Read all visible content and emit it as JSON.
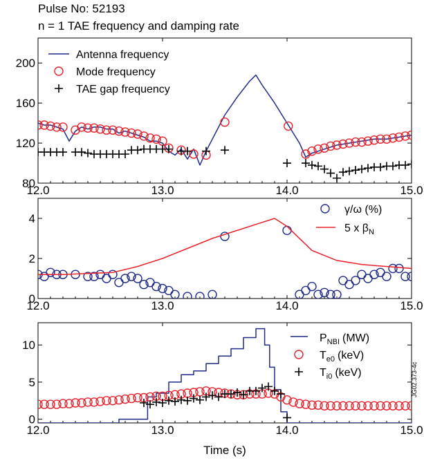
{
  "header": {
    "pulse": "Pulse No: 52193",
    "title": "n = 1 TAE frequency and damping rate"
  },
  "xlabel": "Time (s)",
  "watermark": "JG02.373-4c",
  "colors": {
    "blue": "#1f2a8a",
    "red": "#e8202a",
    "black": "#000000"
  },
  "chart_data": [
    {
      "type": "line",
      "title": "n = 1 TAE frequency and damping rate",
      "xlabel": "",
      "ylabel": "",
      "xlim": [
        12.0,
        15.0
      ],
      "ylim": [
        80,
        225
      ],
      "xticks": [
        "12.0",
        "13.0",
        "14.0",
        "15.0"
      ],
      "yticks": [
        "80",
        "120",
        "160",
        "200"
      ],
      "legend": "top-left",
      "series": [
        {
          "name": "Antenna frequency",
          "style": "line",
          "color": "#1f2a8a",
          "x": [
            12.0,
            12.05,
            12.1,
            12.15,
            12.2,
            12.25,
            12.3,
            12.35,
            12.4,
            12.45,
            12.5,
            12.55,
            12.6,
            12.65,
            12.7,
            12.75,
            12.8,
            12.85,
            12.9,
            12.95,
            13.0,
            13.05,
            13.1,
            13.15,
            13.2,
            13.25,
            13.3,
            13.35,
            13.4,
            13.5,
            13.6,
            13.7,
            13.75,
            13.8,
            13.9,
            14.0,
            14.1,
            14.15,
            14.2,
            14.3,
            14.4,
            14.5,
            14.6,
            14.7,
            14.8,
            14.9,
            15.0
          ],
          "y": [
            140,
            138,
            138,
            136,
            134,
            122,
            132,
            136,
            134,
            136,
            136,
            134,
            134,
            130,
            132,
            130,
            128,
            126,
            122,
            122,
            120,
            112,
            108,
            114,
            104,
            114,
            98,
            112,
            124,
            148,
            166,
            182,
            188,
            178,
            160,
            140,
            120,
            106,
            110,
            114,
            118,
            120,
            122,
            124,
            124,
            126,
            128
          ]
        },
        {
          "name": "Mode frequency",
          "style": "circles",
          "color": "#e8202a",
          "x": [
            12.0,
            12.05,
            12.1,
            12.15,
            12.2,
            12.3,
            12.35,
            12.4,
            12.45,
            12.5,
            12.55,
            12.6,
            12.65,
            12.7,
            12.75,
            12.8,
            12.85,
            12.9,
            12.95,
            13.0,
            13.05,
            13.15,
            13.25,
            13.35,
            13.5,
            14.01,
            14.15,
            14.2,
            14.25,
            14.3,
            14.35,
            14.4,
            14.45,
            14.5,
            14.55,
            14.6,
            14.65,
            14.7,
            14.75,
            14.8,
            14.85,
            14.9,
            14.95,
            15.0
          ],
          "y": [
            138,
            138,
            137,
            136,
            136,
            133,
            136,
            135,
            135,
            134,
            133,
            133,
            132,
            131,
            130,
            129,
            127,
            125,
            124,
            122,
            115,
            113,
            109,
            108,
            141,
            137,
            109,
            112,
            114,
            115,
            117,
            118,
            119,
            120,
            121,
            121,
            122,
            123,
            124,
            124,
            125,
            126,
            127,
            128
          ]
        },
        {
          "name": "TAE gap frequency",
          "style": "plus",
          "color": "#000000",
          "x": [
            12.0,
            12.05,
            12.1,
            12.15,
            12.2,
            12.3,
            12.35,
            12.4,
            12.45,
            12.5,
            12.55,
            12.6,
            12.65,
            12.7,
            12.75,
            12.8,
            12.85,
            12.9,
            12.95,
            13.0,
            13.05,
            13.15,
            13.2,
            13.35,
            13.5,
            14.0,
            14.15,
            14.2,
            14.25,
            14.3,
            14.35,
            14.4,
            14.45,
            14.5,
            14.55,
            14.6,
            14.65,
            14.7,
            14.75,
            14.8,
            14.85,
            14.9,
            14.95,
            15.0
          ],
          "y": [
            111,
            111,
            111,
            111,
            111,
            111,
            111,
            110,
            109,
            109,
            109,
            109,
            109,
            109,
            113,
            113,
            114,
            114,
            114,
            114,
            114,
            112,
            112,
            112,
            113,
            100,
            100,
            98,
            97,
            94,
            90,
            85,
            91,
            92,
            93,
            94,
            95,
            96,
            96,
            97,
            97,
            98,
            98,
            99
          ]
        }
      ]
    },
    {
      "type": "line",
      "title": "",
      "xlabel": "",
      "ylabel": "",
      "xlim": [
        12.0,
        15.0
      ],
      "ylim": [
        0,
        5
      ],
      "xticks": [
        "12.0",
        "13.0",
        "14.0",
        "15.0"
      ],
      "yticks": [
        "0",
        "2",
        "4"
      ],
      "legend": "top-right",
      "series": [
        {
          "name": "γ/ω (%)",
          "style": "circles",
          "color": "#1f2a8a",
          "x": [
            12.0,
            12.05,
            12.1,
            12.15,
            12.2,
            12.3,
            12.4,
            12.45,
            12.5,
            12.55,
            12.6,
            12.65,
            12.7,
            12.75,
            12.8,
            12.85,
            12.9,
            12.95,
            13.0,
            13.05,
            13.1,
            13.2,
            13.3,
            13.4,
            13.5,
            14.0,
            14.1,
            14.15,
            14.2,
            14.25,
            14.3,
            14.35,
            14.4,
            14.45,
            14.5,
            14.55,
            14.6,
            14.65,
            14.7,
            14.75,
            14.8,
            14.85,
            14.9,
            14.95,
            15.0
          ],
          "y": [
            1.2,
            1.1,
            1.3,
            1.2,
            1.2,
            1.2,
            1.1,
            1.1,
            1.2,
            1.0,
            1.2,
            0.8,
            1.0,
            1.1,
            1.0,
            0.7,
            0.8,
            0.6,
            0.5,
            0.4,
            0.2,
            0.1,
            0.1,
            0.2,
            3.1,
            3.4,
            0.2,
            0.4,
            0.6,
            0.2,
            0.3,
            0.2,
            0.2,
            0.9,
            0.7,
            0.9,
            1.2,
            1.0,
            1.2,
            1.3,
            1.1,
            1.5,
            1.5,
            1.1,
            1.1
          ]
        },
        {
          "name": "5 x β_N",
          "style": "line",
          "color": "#e8202a",
          "x": [
            12.0,
            12.2,
            12.4,
            12.6,
            12.8,
            13.0,
            13.2,
            13.4,
            13.6,
            13.8,
            13.9,
            14.0,
            14.2,
            14.4,
            14.6,
            14.8,
            15.0
          ],
          "y": [
            1.2,
            1.2,
            1.25,
            1.3,
            1.6,
            2.0,
            2.5,
            3.0,
            3.4,
            3.8,
            4.0,
            3.6,
            2.4,
            1.9,
            1.7,
            1.6,
            1.5
          ]
        }
      ]
    },
    {
      "type": "line",
      "title": "",
      "xlabel": "Time (s)",
      "ylabel": "",
      "xlim": [
        12.0,
        15.0
      ],
      "ylim": [
        -0.5,
        13
      ],
      "xticks": [
        "12.0",
        "13.0",
        "14.0",
        "15.0"
      ],
      "yticks": [
        "0",
        "5",
        "10"
      ],
      "legend": "top-right",
      "series": [
        {
          "name": "P_NBI (MW)",
          "style": "step",
          "color": "#1f2a8a",
          "x": [
            12.0,
            12.65,
            12.65,
            12.88,
            12.88,
            12.95,
            12.95,
            13.05,
            13.05,
            13.15,
            13.15,
            13.25,
            13.25,
            13.35,
            13.35,
            13.45,
            13.45,
            13.55,
            13.55,
            13.65,
            13.65,
            13.75,
            13.75,
            13.82,
            13.82,
            13.86,
            13.86,
            13.9,
            13.9,
            13.95,
            13.95,
            14.0,
            14.0,
            15.0
          ],
          "y": [
            -0.5,
            -0.5,
            0,
            0,
            3,
            3,
            3.5,
            3.5,
            5,
            5,
            6,
            6,
            6.5,
            6.5,
            7.5,
            7.5,
            8.5,
            8.5,
            9.5,
            9.5,
            11,
            11,
            12.2,
            12.2,
            10,
            10,
            7,
            7,
            4,
            4,
            1,
            1,
            -0.5,
            -0.5
          ]
        },
        {
          "name": "T_e0 (keV)",
          "style": "circles",
          "color": "#e8202a",
          "x": [
            12.0,
            12.05,
            12.1,
            12.15,
            12.2,
            12.25,
            12.3,
            12.35,
            12.4,
            12.45,
            12.5,
            12.55,
            12.6,
            12.65,
            12.7,
            12.75,
            12.8,
            12.85,
            12.9,
            12.95,
            13.0,
            13.05,
            13.1,
            13.15,
            13.2,
            13.25,
            13.3,
            13.35,
            13.4,
            13.45,
            13.5,
            13.55,
            13.6,
            13.65,
            13.7,
            13.75,
            13.8,
            13.85,
            13.9,
            13.95,
            14.0,
            14.05,
            14.1,
            14.15,
            14.2,
            14.25,
            14.3,
            14.35,
            14.4,
            14.45,
            14.5,
            14.55,
            14.6,
            14.65,
            14.7,
            14.75,
            14.8,
            14.85,
            14.9,
            14.95,
            15.0
          ],
          "y": [
            2.0,
            2.0,
            2.0,
            2.0,
            2.1,
            2.1,
            2.2,
            2.2,
            2.3,
            2.3,
            2.4,
            2.5,
            2.5,
            2.6,
            2.7,
            2.8,
            2.9,
            2.9,
            3.0,
            3.1,
            3.1,
            3.2,
            3.3,
            3.4,
            3.5,
            3.6,
            3.7,
            3.8,
            3.7,
            3.6,
            3.5,
            3.4,
            3.3,
            3.3,
            3.4,
            3.4,
            3.4,
            3.5,
            3.4,
            3.0,
            2.6,
            2.3,
            2.1,
            2.0,
            1.9,
            1.9,
            1.8,
            1.8,
            1.8,
            1.8,
            1.8,
            1.8,
            1.8,
            1.8,
            1.8,
            1.8,
            1.8,
            1.8,
            1.8,
            1.8,
            1.8
          ]
        },
        {
          "name": "T_i0 (keV)",
          "style": "plus",
          "color": "#000000",
          "x": [
            12.85,
            12.9,
            12.95,
            13.0,
            13.05,
            13.1,
            13.15,
            13.2,
            13.25,
            13.3,
            13.35,
            13.4,
            13.45,
            13.5,
            13.55,
            13.6,
            13.65,
            13.7,
            13.75,
            13.8,
            13.85,
            13.9,
            13.95,
            14.0
          ],
          "y": [
            2.2,
            2.0,
            2.3,
            2.2,
            2.5,
            2.4,
            2.6,
            2.5,
            2.8,
            2.6,
            3.0,
            3.2,
            3.0,
            3.4,
            3.4,
            3.6,
            3.3,
            3.8,
            3.8,
            4.2,
            4.4,
            3.8,
            3.4,
            0.2
          ]
        }
      ]
    }
  ],
  "panels": [
    {
      "legend": [
        "Antenna frequency",
        "Mode frequency",
        "TAE gap frequency"
      ]
    },
    {
      "legend": [
        "γ/ω (%)",
        "5 x β"
      ],
      "legend_sub": "N"
    },
    {
      "legend": [
        "P",
        "T",
        "T"
      ],
      "legend_sub": [
        "NBI",
        "e0",
        "i0"
      ],
      "legend_unit": [
        "(MW)",
        "(keV)",
        "(keV)"
      ]
    }
  ]
}
